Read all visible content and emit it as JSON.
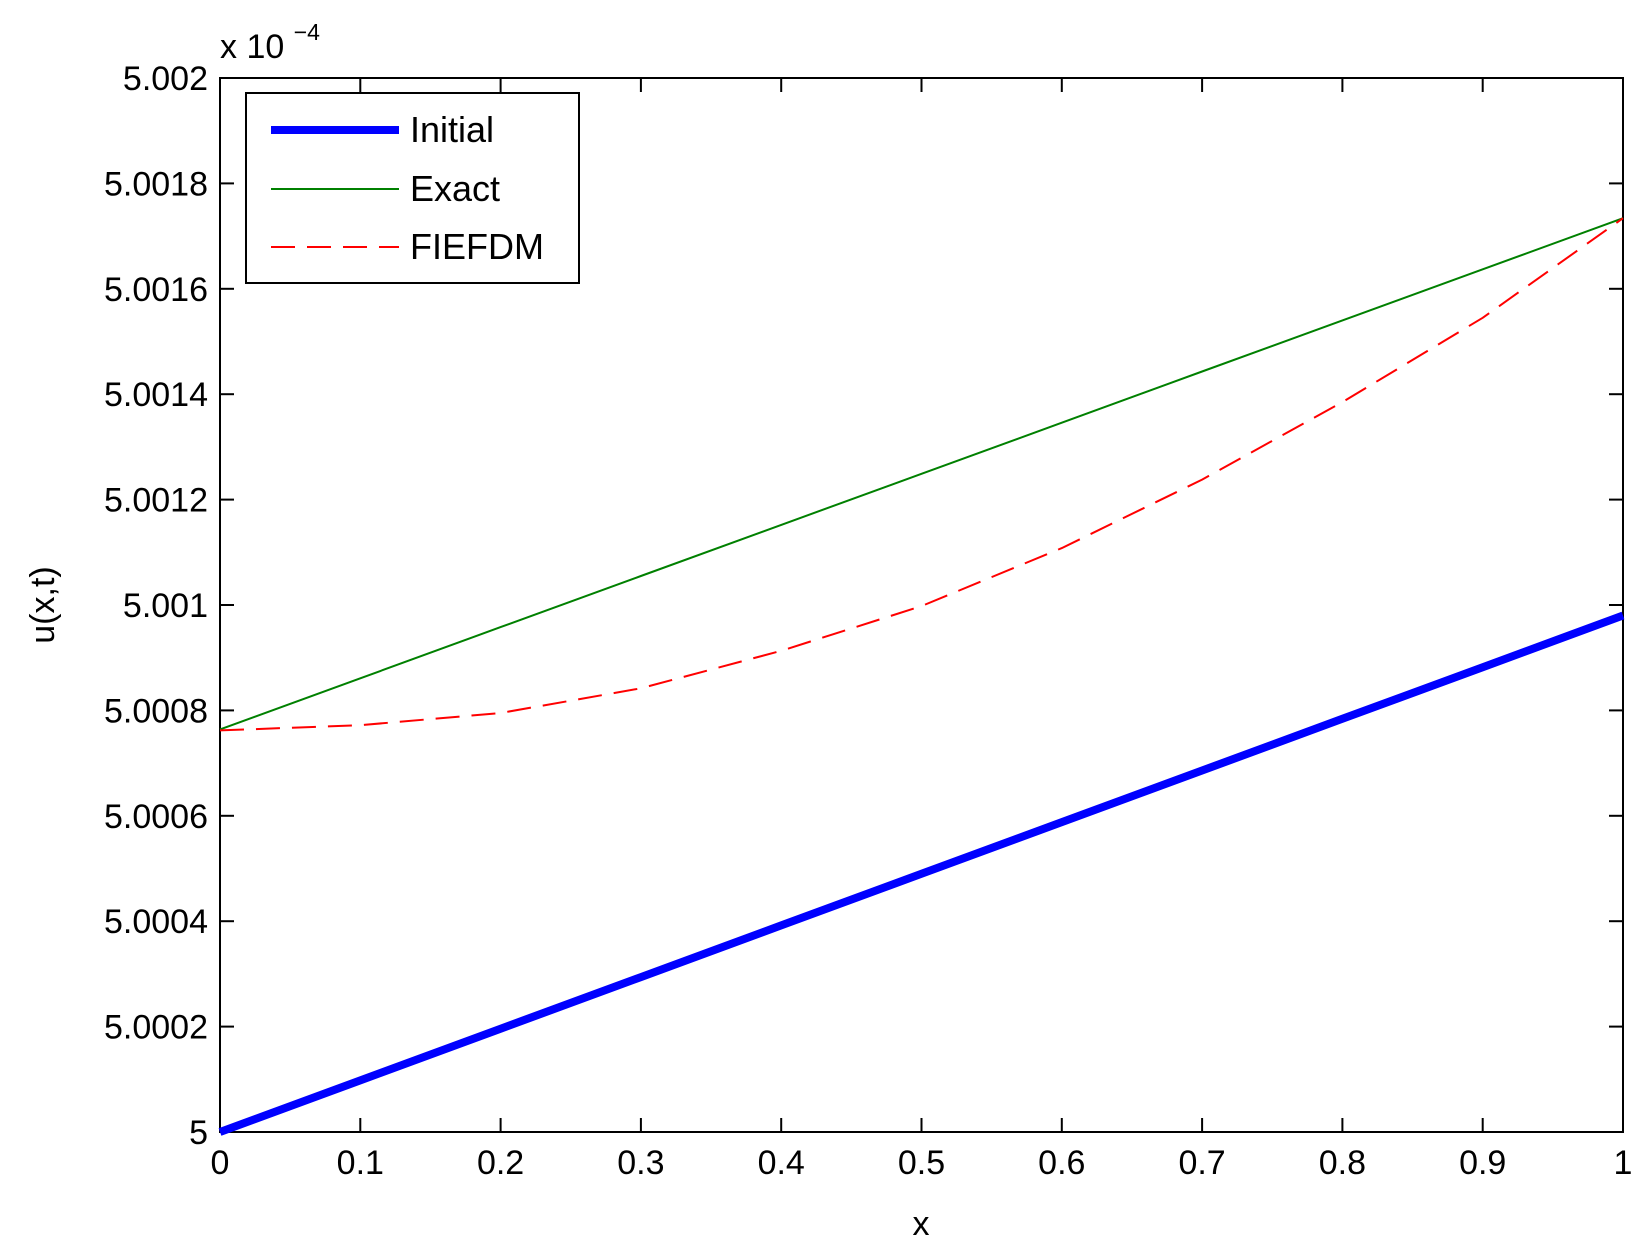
{
  "chart_data": {
    "type": "line",
    "title": "",
    "xlabel": "x",
    "ylabel": "u(x,t)",
    "y_multiplier": {
      "prefix": "x 10",
      "exponent": "−4"
    },
    "xlim": [
      0,
      1
    ],
    "ylim": [
      5.0,
      5.002
    ],
    "xticks": [
      0,
      0.1,
      0.2,
      0.3,
      0.4,
      0.5,
      0.6,
      0.7,
      0.8,
      0.9,
      1
    ],
    "xtick_labels": [
      "0",
      "0.1",
      "0.2",
      "0.3",
      "0.4",
      "0.5",
      "0.6",
      "0.7",
      "0.8",
      "0.9",
      "1"
    ],
    "yticks": [
      5.0,
      5.0002,
      5.0004,
      5.0006,
      5.0008,
      5.001,
      5.0012,
      5.0014,
      5.0016,
      5.0018,
      5.002
    ],
    "ytick_labels": [
      "5",
      "5.0002",
      "5.0004",
      "5.0006",
      "5.0008",
      "5.001",
      "5.0012",
      "5.0014",
      "5.0016",
      "5.0018",
      "5.002"
    ],
    "grid": false,
    "legend_position": "top-left",
    "series": [
      {
        "name": "Initial",
        "color": "#0000ff",
        "style": "solid-thick",
        "x": [
          0,
          0.1,
          0.2,
          0.3,
          0.4,
          0.5,
          0.6,
          0.7,
          0.8,
          0.9,
          1
        ],
        "y": [
          5.0,
          5.000098,
          5.000196,
          5.000294,
          5.000392,
          5.00049,
          5.000588,
          5.000686,
          5.000784,
          5.000882,
          5.00098
        ]
      },
      {
        "name": "Exact",
        "color": "#008000",
        "style": "solid",
        "x": [
          0,
          0.1,
          0.2,
          0.3,
          0.4,
          0.5,
          0.6,
          0.7,
          0.8,
          0.9,
          1
        ],
        "y": [
          5.000764,
          5.000861,
          5.000958,
          5.001055,
          5.001152,
          5.001249,
          5.001346,
          5.001443,
          5.00154,
          5.001637,
          5.001734
        ]
      },
      {
        "name": "FIEFDM",
        "color": "#ff0000",
        "style": "dashed",
        "x": [
          0,
          0.1,
          0.2,
          0.3,
          0.4,
          0.5,
          0.6,
          0.7,
          0.8,
          0.9,
          1
        ],
        "y": [
          5.000762,
          5.000772,
          5.000795,
          5.000842,
          5.000913,
          5.000998,
          5.001108,
          5.001238,
          5.001385,
          5.001545,
          5.001734
        ]
      }
    ]
  }
}
